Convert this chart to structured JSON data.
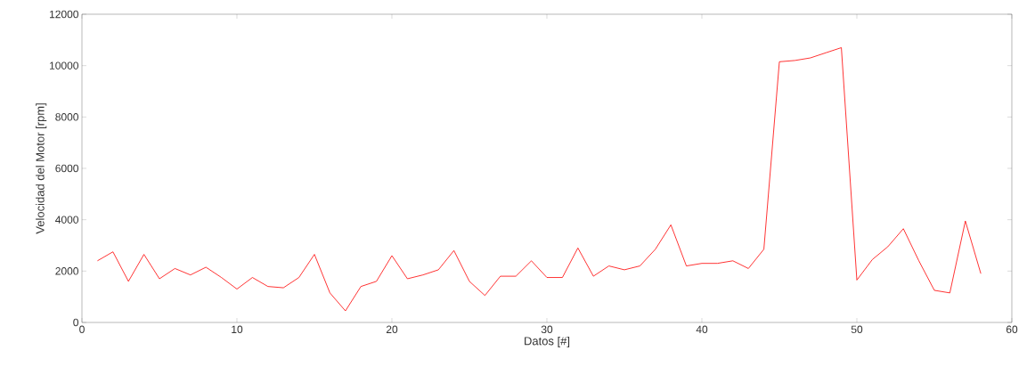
{
  "chart_data": {
    "type": "line",
    "xlabel": "Datos [#]",
    "ylabel": "Velocidad del Motor [rpm]",
    "x": [
      1,
      2,
      3,
      4,
      5,
      6,
      7,
      8,
      9,
      10,
      11,
      12,
      13,
      14,
      15,
      16,
      17,
      18,
      19,
      20,
      21,
      22,
      23,
      24,
      25,
      26,
      27,
      28,
      29,
      30,
      31,
      32,
      33,
      34,
      35,
      36,
      37,
      38,
      39,
      40,
      41,
      42,
      43,
      44,
      45,
      46,
      47,
      48,
      49,
      50,
      51,
      52,
      53,
      54,
      55,
      56,
      57,
      58
    ],
    "series": [
      {
        "color": "#ff0000",
        "values": [
          2400,
          2750,
          1600,
          2650,
          1700,
          2100,
          1850,
          2150,
          1750,
          1300,
          1750,
          1400,
          1350,
          1750,
          2650,
          1150,
          450,
          1400,
          1600,
          2600,
          1700,
          1850,
          2050,
          2800,
          1600,
          1050,
          1800,
          1800,
          2400,
          1750,
          1750,
          2900,
          1800,
          2200,
          2050,
          2200,
          2850,
          3800,
          2200,
          2300,
          2300,
          2400,
          2100,
          2850,
          10150,
          10200,
          10300,
          10500,
          10700,
          1650,
          2450,
          2950,
          3650,
          2400,
          1250,
          1150,
          3950,
          1900
        ]
      }
    ],
    "xlim": [
      0,
      60
    ],
    "xticks": [
      0,
      10,
      20,
      30,
      40,
      50,
      60
    ],
    "ylim": [
      0,
      12000
    ],
    "yticks": [
      0,
      2000,
      4000,
      6000,
      8000,
      10000,
      12000
    ],
    "grid": false,
    "marker": "none",
    "line_style": "solid"
  }
}
